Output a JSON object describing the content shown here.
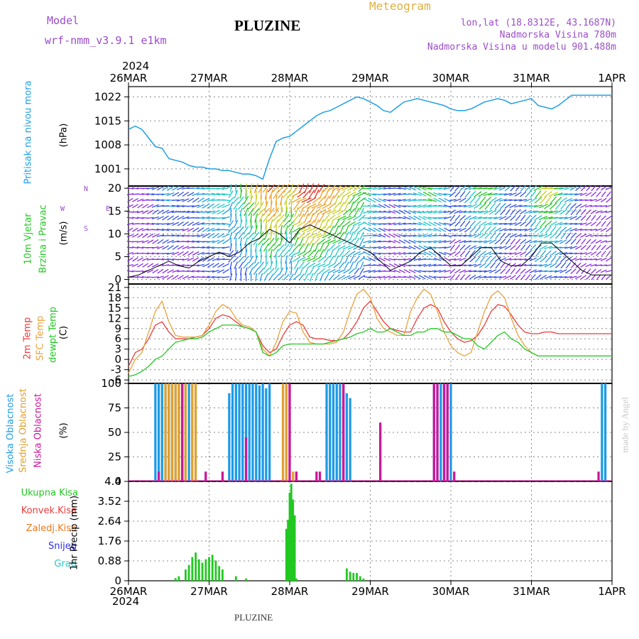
{
  "header": {
    "model_label": "Model",
    "model_name": "wrf-nmm_v3.9.1 e1km",
    "station": "PLUZINE",
    "meteogram": "Meteogram",
    "lonlat": "lon,lat (18.8312E, 43.1687N)",
    "altitude": "Nadmorska Visina 780m",
    "model_altitude": "Nadmorska Visina u modelu 901.488m",
    "watermark": "made by Angel",
    "footer_station": "PLUZINE"
  },
  "colors": {
    "pressure": "#1ea0e6",
    "visoka": "#1e9be6",
    "srednja": "#e0a030",
    "niska": "#c8189a",
    "temp2m": "#ee3b3b",
    "sfc": "#e8a33c",
    "dewpt": "#22c822",
    "precip": "#22c822",
    "konvek": "#ee3b3b",
    "zaledj": "#ee7a22",
    "snijeg": "#3030e6",
    "grad": "#22c8c8"
  },
  "time_axis": {
    "year": "2024",
    "labels": [
      "26MAR",
      "27MAR",
      "28MAR",
      "29MAR",
      "30MAR",
      "31MAR",
      "1APR"
    ]
  },
  "panels": {
    "pressure": {
      "ylabel": "Pritisak na nivou mora",
      "unit": "(hPa)"
    },
    "wind": {
      "ylabel1": "10m Vjetar",
      "ylabel2": "Brzina i Pravac",
      "unit": "(m/s)",
      "compass": {
        "n": "N",
        "s": "S",
        "e": "E",
        "w": "W"
      }
    },
    "temperature": {
      "ylabel_2m": "2m Temp",
      "ylabel_sfc": "SFC Temp",
      "ylabel_dewpt": "dewpt Temp",
      "unit": "(C)"
    },
    "clouds": {
      "ylabel_visoka": "Visoka Oblacnost",
      "ylabel_srednja": "Srednja Oblacnost",
      "ylabel_niska": "Niska Oblacnost",
      "unit": "(%)"
    },
    "precip": {
      "legend": [
        "Ukupna Kisa",
        "Konvek.Kisa",
        "Zaledj.Kisa",
        "Snijeg",
        "Grad"
      ],
      "unit": "1hr Precip (mm)"
    }
  },
  "chart_data": [
    {
      "type": "line",
      "name": "pressure",
      "x_unit": "hours since 26MAR 00UTC",
      "xlim": [
        0,
        144
      ],
      "ylim": [
        996,
        1025
      ],
      "yticks": [
        1001,
        1008,
        1015,
        1022
      ],
      "series": [
        {
          "x": [
            0,
            2,
            4,
            6,
            8,
            10,
            12,
            14,
            16,
            18,
            20,
            22,
            24,
            26,
            28,
            30,
            32,
            34,
            36,
            38,
            40,
            42,
            44,
            46,
            48,
            50,
            52,
            54,
            56,
            58,
            60,
            62,
            64,
            66,
            68,
            70,
            72,
            74,
            76,
            78,
            80,
            82,
            84,
            86,
            88,
            90,
            92,
            94,
            96,
            98,
            100,
            102,
            104,
            106,
            108,
            110,
            112,
            114,
            116,
            118,
            120,
            122,
            124,
            126,
            128,
            130,
            132,
            134,
            136,
            138,
            140,
            142,
            144
          ],
          "y": [
            1012.5,
            1013.5,
            1012.5,
            1010,
            1007.5,
            1007,
            1004,
            1003.5,
            1003,
            1002,
            1001.5,
            1001.5,
            1001,
            1001,
            1000.5,
            1000.5,
            1000,
            999.5,
            999.5,
            999,
            998,
            1004,
            1009,
            1010,
            1010.5,
            1012,
            1013.5,
            1015,
            1016.5,
            1017.5,
            1018,
            1019,
            1020,
            1021,
            1022,
            1021.5,
            1020.5,
            1019.5,
            1018,
            1017.5,
            1019,
            1020.5,
            1021,
            1021.5,
            1021,
            1020.5,
            1020,
            1019.5,
            1018.5,
            1018,
            1018,
            1018.5,
            1019.5,
            1020.5,
            1021,
            1021.5,
            1021,
            1020,
            1020.5,
            1021,
            1021.5,
            1019.5,
            1019,
            1018.5,
            1019.5,
            1021,
            1022.5,
            1022.5,
            1022.5,
            1022.5,
            1022.5,
            1022.5,
            1022.5
          ]
        }
      ]
    },
    {
      "type": "line",
      "name": "wind",
      "x_unit": "hours since 26MAR 00UTC",
      "xlim": [
        0,
        144
      ],
      "ylim": [
        -1,
        20.5
      ],
      "yticks": [
        0,
        5,
        10,
        15,
        20
      ],
      "series": [
        {
          "x": [
            0,
            3,
            6,
            9,
            12,
            15,
            18,
            21,
            24,
            27,
            30,
            33,
            36,
            39,
            42,
            45,
            48,
            51,
            54,
            57,
            60,
            63,
            66,
            69,
            72,
            75,
            78,
            81,
            84,
            87,
            90,
            93,
            96,
            99,
            102,
            105,
            108,
            111,
            114,
            117,
            120,
            123,
            126,
            129,
            132,
            135,
            138,
            141,
            144
          ],
          "y": [
            0.5,
            1,
            2,
            3,
            4,
            3,
            2.5,
            4,
            5,
            6,
            5,
            6,
            8,
            9,
            11,
            10,
            8,
            11,
            12,
            11,
            10,
            9,
            8,
            7,
            6,
            4,
            2,
            3,
            4,
            6,
            7,
            5,
            3,
            3,
            5,
            7,
            7,
            4,
            3,
            3,
            5,
            8,
            8,
            6,
            4,
            2,
            1,
            1,
            1
          ]
        }
      ]
    },
    {
      "type": "line",
      "name": "temperature",
      "x_unit": "hours since 26MAR 00UTC",
      "xlim": [
        0,
        144
      ],
      "ylim": [
        -7,
        22
      ],
      "yticks": [
        -6,
        -3,
        0,
        3,
        6,
        9,
        12,
        15,
        18,
        21
      ],
      "series": [
        {
          "name": "2m Temp",
          "color_key": "temp2m",
          "x": [
            0,
            2,
            4,
            6,
            8,
            10,
            12,
            14,
            16,
            18,
            20,
            22,
            24,
            26,
            28,
            30,
            32,
            34,
            36,
            38,
            40,
            42,
            44,
            46,
            48,
            50,
            52,
            54,
            56,
            58,
            60,
            62,
            64,
            66,
            68,
            70,
            72,
            74,
            76,
            78,
            80,
            82,
            84,
            86,
            88,
            90,
            92,
            94,
            96,
            98,
            100,
            102,
            104,
            106,
            108,
            110,
            112,
            114,
            116,
            118,
            120,
            122,
            124,
            126,
            128,
            130,
            132,
            134,
            136,
            138,
            140,
            142,
            144
          ],
          "y": [
            -2,
            2,
            3,
            6,
            10,
            11,
            8,
            6,
            6,
            6,
            6.5,
            7,
            9,
            12,
            13,
            12.5,
            11,
            9.5,
            9,
            8,
            4,
            2,
            3,
            7,
            10,
            11,
            10,
            6.5,
            6,
            6,
            5.5,
            5.5,
            6,
            8,
            11,
            15,
            17,
            14,
            11,
            9,
            8.5,
            8,
            8,
            12,
            15,
            16,
            15,
            11,
            8,
            6,
            5,
            5.5,
            7,
            10,
            14,
            16,
            15.5,
            13,
            10,
            8,
            7.5,
            7.5,
            8,
            8,
            7.5,
            7.5,
            7.5,
            7.5,
            7.5,
            7.5,
            7.5,
            7.5,
            7.5
          ]
        },
        {
          "name": "SFC Temp",
          "color_key": "sfc",
          "x": [
            0,
            2,
            4,
            6,
            8,
            10,
            12,
            14,
            16,
            18,
            20,
            22,
            24,
            26,
            28,
            30,
            32,
            34,
            36,
            38,
            40,
            42,
            44,
            46,
            48,
            50,
            52,
            54,
            56,
            58,
            60,
            62,
            64,
            66,
            68,
            70,
            72,
            74,
            76,
            78,
            80,
            82,
            84,
            86,
            88,
            90,
            92,
            94,
            96,
            98,
            100,
            102,
            104,
            106,
            108,
            110,
            112,
            114,
            116,
            118,
            120,
            122,
            124,
            126,
            128,
            130,
            132,
            134,
            136,
            138,
            140,
            142,
            144
          ],
          "y": [
            -4,
            0,
            2,
            8,
            14,
            17,
            11,
            7,
            6.5,
            6.5,
            6.5,
            7,
            10,
            14,
            16,
            15,
            12,
            10,
            9.5,
            8,
            3,
            1,
            5,
            11,
            14,
            13.5,
            8,
            5,
            4.5,
            4.5,
            4.5,
            5,
            8,
            14,
            19,
            20.5,
            18,
            12,
            9,
            8,
            7,
            7,
            14,
            18,
            20.5,
            19,
            14,
            8,
            4,
            2,
            1,
            2,
            8,
            14,
            18.5,
            20,
            18,
            12,
            7,
            4,
            2,
            1,
            1,
            1,
            1,
            1,
            1,
            1,
            1,
            1,
            1,
            1,
            1
          ]
        },
        {
          "name": "dewpt Temp",
          "color_key": "dewpt",
          "x": [
            0,
            2,
            4,
            6,
            8,
            10,
            12,
            14,
            16,
            18,
            20,
            22,
            24,
            26,
            28,
            30,
            32,
            34,
            36,
            38,
            40,
            42,
            44,
            46,
            48,
            50,
            52,
            54,
            56,
            58,
            60,
            62,
            64,
            66,
            68,
            70,
            72,
            74,
            76,
            78,
            80,
            82,
            84,
            86,
            88,
            90,
            92,
            94,
            96,
            98,
            100,
            102,
            104,
            106,
            108,
            110,
            112,
            114,
            116,
            118,
            120,
            122,
            124,
            126,
            128,
            130,
            132,
            134,
            136,
            138,
            140,
            142,
            144
          ],
          "y": [
            -5,
            -4.5,
            -3.5,
            -2,
            0,
            1,
            3,
            5,
            5.5,
            6,
            6,
            6.5,
            8,
            9,
            10,
            10,
            10,
            9.5,
            9,
            8,
            2,
            1,
            2,
            4,
            4.5,
            4.5,
            4.5,
            4.5,
            4.5,
            4.5,
            5,
            5.5,
            6,
            6.5,
            7.5,
            8,
            9,
            8,
            8,
            9,
            8,
            7,
            7,
            8,
            8,
            9,
            9,
            8,
            8,
            7,
            6,
            6,
            4,
            3,
            5,
            7,
            8,
            6,
            5,
            3,
            2,
            1,
            1,
            1,
            1,
            1,
            1,
            1,
            1,
            1,
            1,
            1,
            1
          ]
        }
      ]
    },
    {
      "type": "bar",
      "name": "clouds",
      "x_unit": "hours since 26MAR 00UTC",
      "xlim": [
        0,
        144
      ],
      "ylim": [
        0,
        100
      ],
      "yticks": [
        0,
        25,
        50,
        75,
        100
      ],
      "series": [
        {
          "name": "Visoka Oblacnost",
          "color_key": "visoka",
          "x": [
            8,
            9,
            10,
            11,
            12,
            13,
            14,
            15,
            16,
            17,
            18,
            19,
            30,
            31,
            32,
            33,
            34,
            35,
            36,
            37,
            38,
            39,
            40,
            41,
            42,
            59,
            60,
            61,
            62,
            63,
            64,
            65,
            66,
            91,
            92,
            93,
            94,
            95,
            96,
            141,
            142
          ],
          "y": [
            100,
            100,
            100,
            100,
            100,
            100,
            100,
            100,
            100,
            100,
            100,
            100,
            90,
            100,
            100,
            100,
            100,
            100,
            100,
            100,
            100,
            98,
            100,
            95,
            100,
            100,
            100,
            100,
            100,
            100,
            100,
            90,
            85,
            100,
            100,
            100,
            100,
            100,
            100,
            100,
            100
          ]
        },
        {
          "name": "Srednja Oblacnost",
          "color_key": "srednja",
          "x": [
            11,
            12,
            13,
            14,
            15,
            16,
            17,
            19,
            20,
            46,
            47,
            48,
            49,
            50
          ],
          "y": [
            100,
            100,
            100,
            100,
            100,
            100,
            100,
            100,
            100,
            100,
            100,
            100,
            10,
            10
          ]
        },
        {
          "name": "Niska Oblacnost",
          "color_key": "niska",
          "x": [
            9,
            16,
            23,
            28,
            35,
            48,
            50,
            56,
            57,
            64,
            75,
            91,
            92,
            94,
            95,
            97,
            140
          ],
          "y": [
            10,
            100,
            10,
            10,
            45,
            100,
            10,
            10,
            10,
            100,
            60,
            100,
            100,
            100,
            100,
            10,
            10
          ]
        }
      ]
    },
    {
      "type": "bar",
      "name": "precip",
      "x_unit": "hours since 26MAR 00UTC",
      "xlim": [
        0,
        144
      ],
      "ylim": [
        0,
        4.4
      ],
      "yticks": [
        0,
        0.88,
        1.76,
        2.64,
        3.52,
        4.4
      ],
      "series": [
        {
          "name": "Ukupna Kisa",
          "color_key": "precip",
          "x": [
            14,
            15,
            17,
            18,
            19,
            20,
            21,
            22,
            23,
            24,
            25,
            26,
            27,
            28,
            32,
            35,
            47,
            47.5,
            48,
            48.5,
            49,
            49.5,
            50,
            65,
            66,
            67,
            68,
            69,
            70
          ],
          "y": [
            0.12,
            0.2,
            0.5,
            0.7,
            1.05,
            1.25,
            0.95,
            0.8,
            0.95,
            1.05,
            1.15,
            0.9,
            0.65,
            0.5,
            0.2,
            0.1,
            2.3,
            2.7,
            3.9,
            4.3,
            3.6,
            2.9,
            0.1,
            0.55,
            0.4,
            0.35,
            0.35,
            0.2,
            0.1
          ]
        }
      ]
    }
  ]
}
